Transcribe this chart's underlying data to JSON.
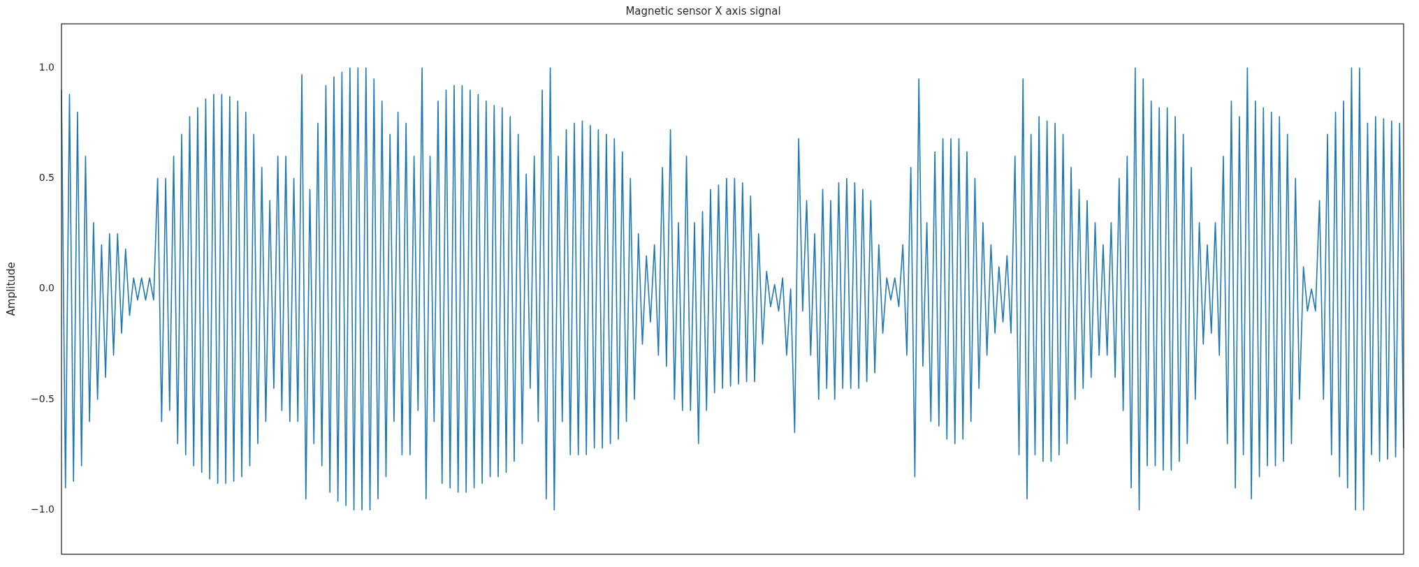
{
  "chart_data": {
    "type": "line",
    "title": "Magnetic sensor X axis signal",
    "ylabel": "Amplitude",
    "tick_labels": "y",
    "grid": false,
    "legend": false,
    "marker": "none",
    "line_style": "solid",
    "ylim": [
      -1.2,
      1.2
    ],
    "yticks": [
      {
        "value": -1.0,
        "label": "−1.0"
      },
      {
        "value": -0.5,
        "label": "−0.5"
      },
      {
        "value": 0.0,
        "label": "0.0"
      },
      {
        "value": 0.5,
        "label": "0.5"
      },
      {
        "value": 1.0,
        "label": "1.0"
      }
    ],
    "categories": [
      null,
      null,
      null,
      null,
      null,
      null,
      null,
      null,
      null,
      null,
      null,
      null,
      null,
      null,
      null,
      null,
      null,
      null,
      null,
      null,
      null,
      null,
      null,
      null,
      null,
      null,
      null,
      null,
      null,
      null,
      null,
      null,
      null,
      null,
      null,
      null,
      null,
      null,
      null,
      null,
      null,
      null,
      null,
      null,
      null,
      null,
      null,
      null,
      null,
      null,
      null,
      null,
      null,
      null,
      null,
      null,
      null,
      null,
      null,
      null,
      null,
      null,
      null,
      null,
      null,
      null,
      null,
      null,
      null,
      null,
      null,
      null,
      null,
      null,
      null,
      null,
      null,
      null,
      null,
      null,
      null,
      null,
      null,
      null,
      null,
      null,
      null,
      null,
      null,
      null,
      null,
      null,
      null,
      null,
      null,
      null,
      null,
      null,
      null,
      null,
      null,
      null,
      null,
      null,
      null,
      null,
      null,
      null,
      null,
      null,
      null,
      null,
      null,
      null,
      null,
      null,
      null,
      null,
      null,
      null,
      null,
      null,
      null,
      null,
      null,
      null,
      null,
      null,
      null,
      null,
      null,
      null,
      null,
      null,
      null,
      null,
      null,
      null,
      null,
      null,
      null,
      null,
      null,
      null,
      null,
      null,
      null,
      null,
      null,
      null,
      null,
      null,
      null,
      null,
      null,
      null,
      null,
      null,
      null,
      null,
      null,
      null,
      null,
      null,
      null,
      null,
      null,
      null,
      null,
      null,
      null,
      null,
      null,
      null,
      null,
      null,
      null,
      null,
      null,
      null,
      null,
      null,
      null,
      null,
      null,
      null,
      null,
      null,
      null,
      null,
      null,
      null,
      null,
      null,
      null,
      null,
      null,
      null,
      null,
      null,
      null,
      null,
      null,
      null,
      null,
      null,
      null,
      null,
      null,
      null,
      null,
      null,
      null,
      null,
      null,
      null,
      null,
      null,
      null,
      null,
      null,
      null,
      null,
      null,
      null,
      null,
      null,
      null,
      null,
      null,
      null,
      null,
      null,
      null,
      null,
      null,
      null,
      null,
      null,
      null,
      null,
      null,
      null,
      null,
      null,
      null,
      null,
      null,
      null,
      null,
      null,
      null,
      null,
      null,
      null,
      null,
      null,
      null,
      null,
      null,
      null,
      null,
      null,
      null,
      null,
      null,
      null,
      null,
      null,
      null,
      null,
      null,
      null,
      null,
      null,
      null,
      null,
      null,
      null,
      null,
      null,
      null,
      null,
      null,
      null,
      null,
      null,
      null,
      null,
      null,
      null,
      null,
      null,
      null,
      null,
      null,
      null,
      null,
      null,
      null,
      null,
      null,
      null,
      null,
      null,
      null,
      null,
      null,
      null,
      null,
      null,
      null,
      null,
      null,
      null,
      null,
      null,
      null,
      null,
      null,
      null,
      null,
      null,
      null,
      null,
      null,
      null,
      null,
      null,
      null,
      null,
      null,
      null,
      null,
      null,
      null
    ],
    "series": [
      {
        "color": "#1f77b4",
        "values": [
          0.9,
          -0.9,
          0.88,
          -0.87,
          0.8,
          -0.8,
          0.6,
          -0.6,
          0.3,
          -0.5,
          0.2,
          -0.4,
          0.25,
          -0.3,
          0.25,
          -0.2,
          0.18,
          -0.12,
          0.05,
          -0.05,
          0.05,
          -0.05,
          0.05,
          -0.05,
          0.5,
          -0.6,
          0.5,
          -0.55,
          0.6,
          -0.7,
          0.7,
          -0.75,
          0.78,
          -0.8,
          0.82,
          -0.83,
          0.86,
          -0.86,
          0.88,
          -0.88,
          0.88,
          -0.88,
          0.87,
          -0.87,
          0.85,
          -0.85,
          0.8,
          -0.8,
          0.7,
          -0.7,
          0.55,
          -0.6,
          0.4,
          -0.45,
          0.6,
          -0.55,
          0.6,
          -0.6,
          0.5,
          -0.6,
          0.97,
          -0.95,
          0.45,
          -0.7,
          0.75,
          -0.8,
          0.92,
          -0.92,
          0.96,
          -0.96,
          0.98,
          -0.98,
          1.0,
          -1.0,
          1.0,
          -1.0,
          1.0,
          -1.0,
          0.95,
          -0.95,
          0.85,
          -0.85,
          0.7,
          -0.6,
          0.8,
          -0.75,
          0.75,
          -0.75,
          0.6,
          -0.55,
          1.0,
          -0.95,
          0.6,
          -0.6,
          0.85,
          -0.88,
          0.9,
          -0.9,
          0.92,
          -0.92,
          0.92,
          -0.92,
          0.9,
          -0.9,
          0.88,
          -0.88,
          0.85,
          -0.85,
          0.83,
          -0.85,
          0.82,
          -0.83,
          0.78,
          -0.78,
          0.7,
          -0.7,
          0.52,
          -0.45,
          0.6,
          -0.6,
          0.9,
          -0.95,
          1.0,
          -1.0,
          0.6,
          -0.6,
          0.72,
          -0.75,
          0.75,
          -0.75,
          0.76,
          -0.75,
          0.74,
          -0.72,
          0.72,
          -0.72,
          0.7,
          -0.7,
          0.68,
          -0.68,
          0.62,
          -0.6,
          0.5,
          -0.5,
          0.25,
          -0.25,
          0.15,
          -0.15,
          0.2,
          -0.3,
          0.55,
          -0.35,
          0.72,
          -0.5,
          0.3,
          -0.55,
          0.6,
          -0.55,
          0.3,
          -0.7,
          0.35,
          -0.55,
          0.45,
          -0.47,
          0.47,
          -0.45,
          0.5,
          -0.44,
          0.5,
          -0.43,
          0.48,
          -0.42,
          0.42,
          -0.42,
          0.25,
          -0.25,
          0.08,
          -0.08,
          0.02,
          -0.1,
          0.05,
          -0.3,
          0.0,
          -0.65,
          0.68,
          -0.1,
          0.4,
          -0.3,
          0.25,
          -0.5,
          0.45,
          -0.45,
          0.4,
          -0.5,
          0.48,
          -0.45,
          0.5,
          -0.45,
          0.48,
          -0.45,
          0.45,
          -0.42,
          0.4,
          -0.38,
          0.2,
          -0.2,
          0.05,
          -0.05,
          0.05,
          -0.08,
          0.2,
          -0.3,
          0.55,
          -0.85,
          0.95,
          -0.35,
          0.3,
          -0.6,
          0.62,
          -0.62,
          0.68,
          -0.68,
          0.68,
          -0.7,
          0.68,
          -0.68,
          0.62,
          -0.6,
          0.5,
          -0.45,
          0.3,
          -0.3,
          0.2,
          -0.2,
          0.1,
          -0.15,
          0.15,
          -0.2,
          0.6,
          -0.75,
          0.95,
          -0.95,
          0.7,
          -0.75,
          0.78,
          -0.78,
          0.76,
          -0.78,
          0.75,
          -0.75,
          0.7,
          -0.7,
          0.55,
          -0.5,
          0.45,
          -0.45,
          0.4,
          -0.4,
          0.3,
          -0.3,
          0.2,
          -0.3,
          0.3,
          -0.4,
          0.5,
          -0.55,
          0.6,
          -0.9,
          1.0,
          -1.0,
          0.95,
          -0.8,
          0.85,
          -0.8,
          0.82,
          -0.82,
          0.82,
          -0.82,
          0.78,
          -0.78,
          0.7,
          -0.7,
          0.55,
          -0.5,
          0.3,
          -0.25,
          0.2,
          -0.2,
          0.3,
          -0.3,
          0.6,
          -0.7,
          0.85,
          -0.9,
          0.78,
          -0.75,
          1.0,
          -0.95,
          0.85,
          -0.85,
          0.82,
          -0.8,
          0.8,
          -0.8,
          0.78,
          -0.78,
          0.7,
          -0.7,
          0.5,
          -0.5,
          0.1,
          -0.1,
          0.0,
          -0.1,
          0.4,
          -0.5,
          0.7,
          -0.75,
          0.8,
          -0.85,
          0.85,
          -0.9,
          1.0,
          -1.0,
          1.0,
          -1.0,
          0.75,
          -0.75,
          0.78,
          -0.78,
          0.77,
          -0.77,
          0.76,
          -0.76,
          0.75,
          -0.72
        ]
      }
    ]
  }
}
